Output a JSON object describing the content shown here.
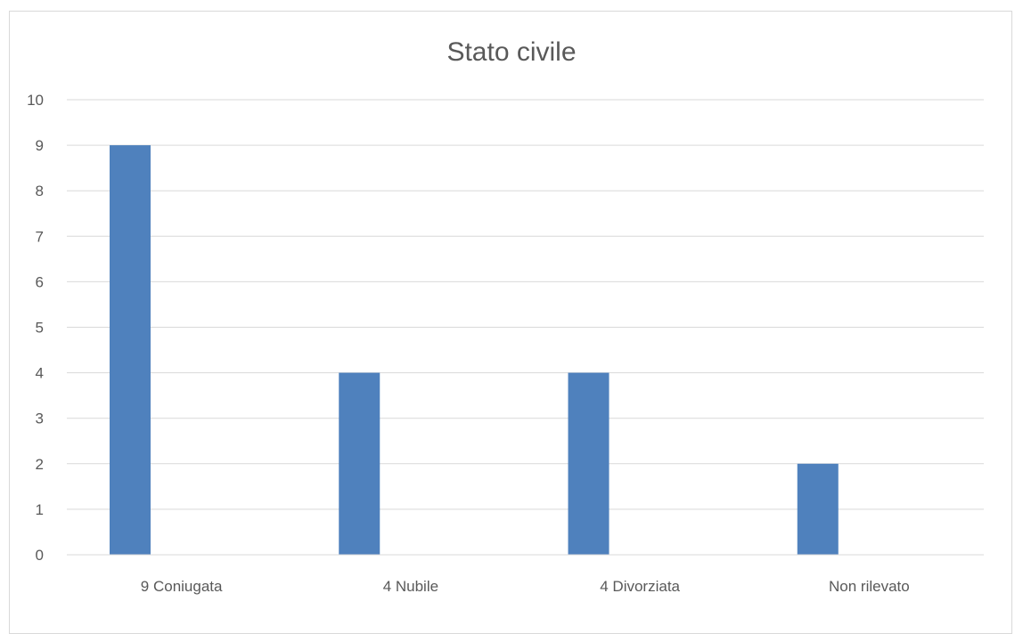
{
  "chart_data": {
    "type": "bar",
    "title": "Stato civile",
    "categories": [
      "9 Coniugata",
      "4 Nubile",
      "4 Divorziata",
      "Non rilevato"
    ],
    "series": [
      {
        "values": [
          9,
          4,
          4,
          2
        ],
        "color": "#4f81bd"
      }
    ],
    "ylim": [
      0,
      10
    ],
    "yticks": [
      0,
      1,
      2,
      3,
      4,
      5,
      6,
      7,
      8,
      9,
      10
    ],
    "grid": true,
    "gridColor": "#d9d9d9",
    "legend": "none"
  }
}
